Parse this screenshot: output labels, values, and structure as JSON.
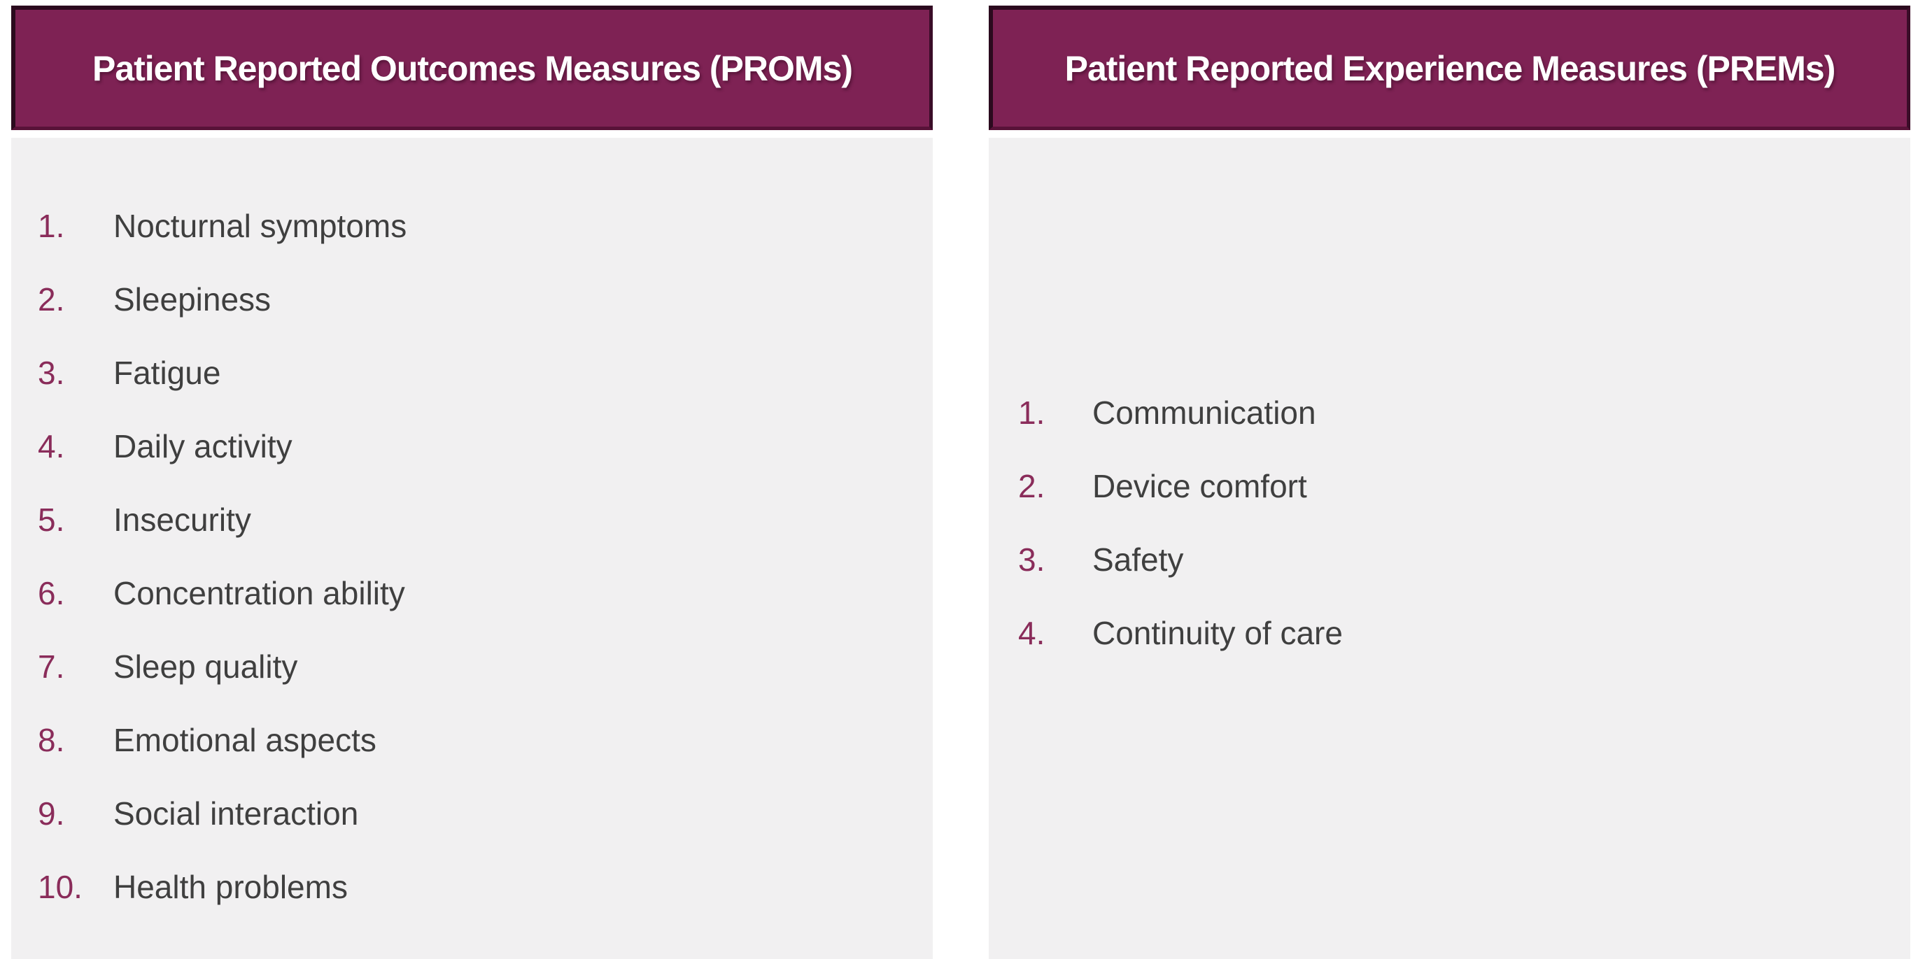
{
  "figure": {
    "accent_color": "#7e2254",
    "body_background": "#f1f0f1",
    "number_color": "#8a2c5a",
    "label_color": "#3f3f3f"
  },
  "panels": [
    {
      "id": "proms",
      "title": "Patient Reported Outcomes Measures (PROMs)",
      "items": [
        {
          "num": "1.",
          "label": "Nocturnal symptoms"
        },
        {
          "num": "2.",
          "label": "Sleepiness"
        },
        {
          "num": "3.",
          "label": "Fatigue"
        },
        {
          "num": "4.",
          "label": "Daily activity"
        },
        {
          "num": "5.",
          "label": "Insecurity"
        },
        {
          "num": "6.",
          "label": "Concentration ability"
        },
        {
          "num": "7.",
          "label": "Sleep quality"
        },
        {
          "num": "8.",
          "label": "Emotional aspects"
        },
        {
          "num": "9.",
          "label": "Social interaction"
        },
        {
          "num": "10.",
          "label": "Health problems"
        }
      ]
    },
    {
      "id": "prems",
      "title": "Patient Reported Experience Measures (PREMs)",
      "items": [
        {
          "num": "1.",
          "label": "Communication"
        },
        {
          "num": "2.",
          "label": "Device comfort"
        },
        {
          "num": "3.",
          "label": "Safety"
        },
        {
          "num": "4.",
          "label": "Continuity of care"
        }
      ]
    }
  ]
}
